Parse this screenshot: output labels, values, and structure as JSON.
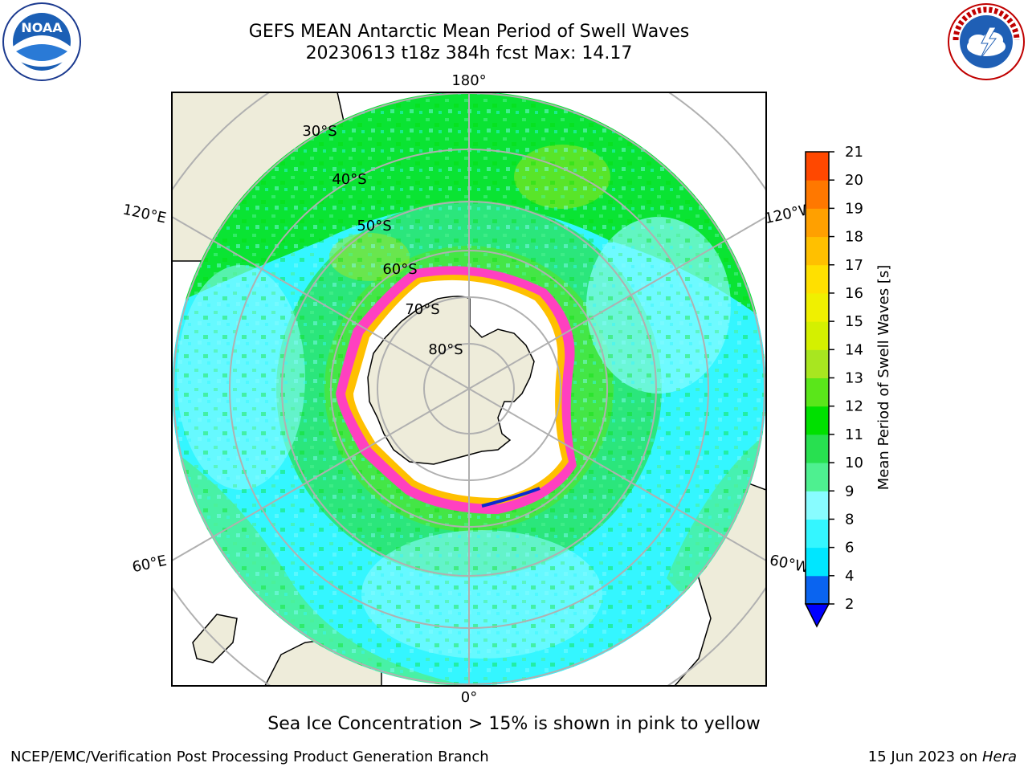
{
  "title": {
    "line1": "GEFS MEAN Antarctic Mean Period of Swell Waves",
    "line2": "20230613 t18z 384h fcst   Max: 14.17"
  },
  "logos": {
    "left": "NOAA",
    "left_ring": "NATIONAL OCEANIC AND ATMOSPHERIC ADMINISTRATION · U.S. DEPARTMENT OF COMMERCE",
    "right_ring": "NATIONAL WEATHER SERVICE"
  },
  "map": {
    "projection": "south-polar-stereographic",
    "longitude_labels": {
      "top": "180°",
      "bottom": "0°",
      "upper_left": "120°E",
      "upper_right": "120°W",
      "lower_left": "60°E",
      "lower_right": "60°W"
    },
    "latitude_labels": [
      "30°S",
      "40°S",
      "50°S",
      "60°S",
      "70°S",
      "80°S"
    ],
    "colors": {
      "land": "#eeecda",
      "grid": "#b0b0b0",
      "ice_shelf": "#ffffff"
    }
  },
  "colorbar": {
    "label": "Mean Period of Swell Waves [s]",
    "ticks": [
      "2",
      "4",
      "6",
      "8",
      "9",
      "10",
      "11",
      "12",
      "13",
      "14",
      "15",
      "16",
      "17",
      "18",
      "19",
      "20",
      "21"
    ],
    "colors": [
      "#0a64f0",
      "#00e6ff",
      "#34f6ff",
      "#88fcff",
      "#4ef090",
      "#28e050",
      "#00e000",
      "#5ae61a",
      "#a8e620",
      "#d4f000",
      "#f0f000",
      "#ffe000",
      "#ffc000",
      "#ffa000",
      "#ff7800",
      "#ff4800",
      "#ff0000"
    ],
    "extend_color": "#0000ff"
  },
  "note": "Sea Ice Concentration > 15% is shown in pink to yellow",
  "footer": {
    "left": "NCEP/EMC/Verification Post Processing Product Generation Branch",
    "right_date": "15 Jun 2023 on ",
    "right_host": "Hera"
  }
}
